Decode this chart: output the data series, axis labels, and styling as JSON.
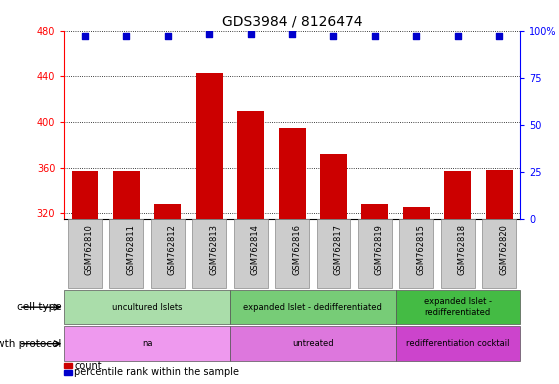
{
  "title": "GDS3984 / 8126474",
  "samples": [
    "GSM762810",
    "GSM762811",
    "GSM762812",
    "GSM762813",
    "GSM762814",
    "GSM762816",
    "GSM762817",
    "GSM762819",
    "GSM762815",
    "GSM762818",
    "GSM762820"
  ],
  "counts": [
    357,
    357,
    328,
    443,
    410,
    395,
    372,
    328,
    325,
    357,
    358
  ],
  "percentiles": [
    97,
    97,
    97,
    98,
    98,
    98,
    97,
    97,
    97,
    97,
    97
  ],
  "ylim_left": [
    315,
    480
  ],
  "ylim_right": [
    0,
    100
  ],
  "yticks_left": [
    320,
    360,
    400,
    440,
    480
  ],
  "yticks_right": [
    0,
    25,
    50,
    75,
    100
  ],
  "bar_color": "#cc0000",
  "dot_color": "#0000cc",
  "cell_type_groups": [
    {
      "label": "uncultured Islets",
      "start": 0,
      "end": 4,
      "color": "#aaddaa"
    },
    {
      "label": "expanded Islet - dedifferentiated",
      "start": 4,
      "end": 8,
      "color": "#77cc77"
    },
    {
      "label": "expanded Islet -\nredifferentiated",
      "start": 8,
      "end": 11,
      "color": "#44bb44"
    }
  ],
  "growth_protocol_groups": [
    {
      "label": "na",
      "start": 0,
      "end": 4,
      "color": "#ee99ee"
    },
    {
      "label": "untreated",
      "start": 4,
      "end": 8,
      "color": "#dd77dd"
    },
    {
      "label": "redifferentiation cocktail",
      "start": 8,
      "end": 11,
      "color": "#cc44cc"
    }
  ],
  "cell_type_label": "cell type",
  "growth_protocol_label": "growth protocol",
  "legend_count_label": "count",
  "legend_pct_label": "percentile rank within the sample",
  "bg_color": "#cccccc",
  "title_fontsize": 10,
  "tick_fontsize": 7,
  "label_fontsize": 7.5,
  "annotation_fontsize": 6.5
}
